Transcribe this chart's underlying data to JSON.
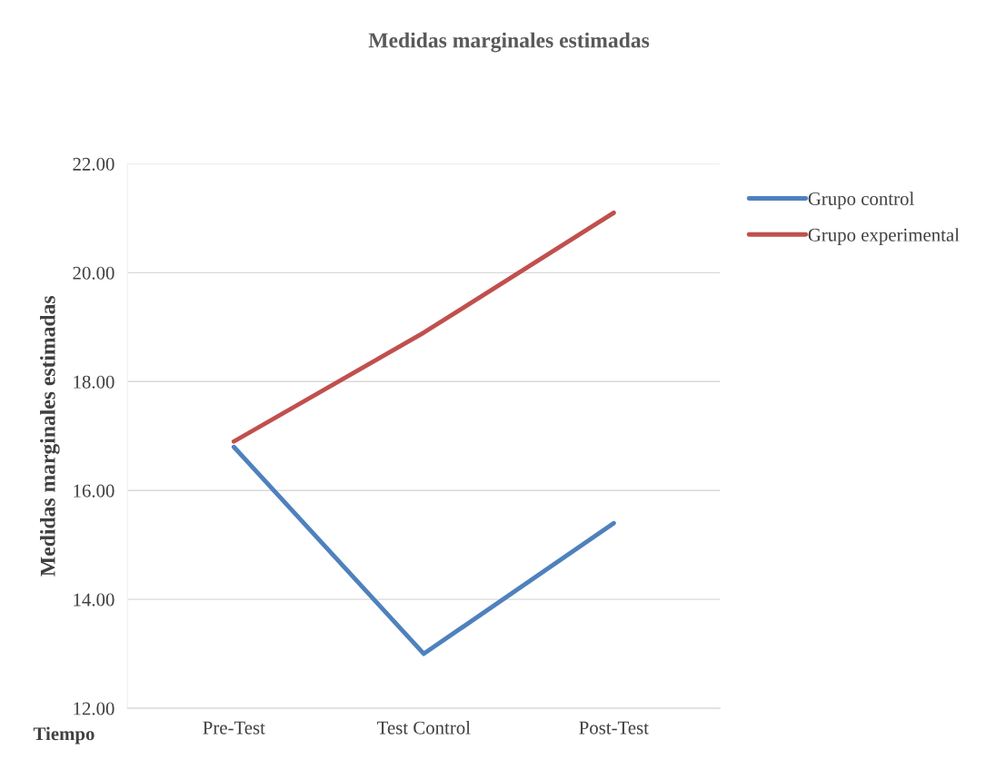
{
  "chart_data": {
    "type": "line",
    "title": "Medidas marginales estimadas",
    "ylabel": "Medidas marginales estimadas",
    "xlabel": "Tiempo",
    "categories": [
      "Pre-Test",
      "Test Control",
      "Post-Test"
    ],
    "series": [
      {
        "name": "Grupo control",
        "color": "#4f81bd",
        "values": [
          16.8,
          13.0,
          15.4
        ]
      },
      {
        "name": "Grupo experimental",
        "color": "#c0504d",
        "values": [
          16.9,
          18.9,
          21.1
        ]
      }
    ],
    "ylim": [
      12,
      22
    ],
    "yticks": [
      {
        "value": 12,
        "label": "12.00"
      },
      {
        "value": 14,
        "label": "14.00"
      },
      {
        "value": 16,
        "label": "16.00"
      },
      {
        "value": 18,
        "label": "18.00"
      },
      {
        "value": 20,
        "label": "20.00"
      },
      {
        "value": 22,
        "label": "22.00"
      }
    ],
    "grid": "y",
    "legend": "right",
    "marker": "none",
    "line_style": "solid"
  }
}
